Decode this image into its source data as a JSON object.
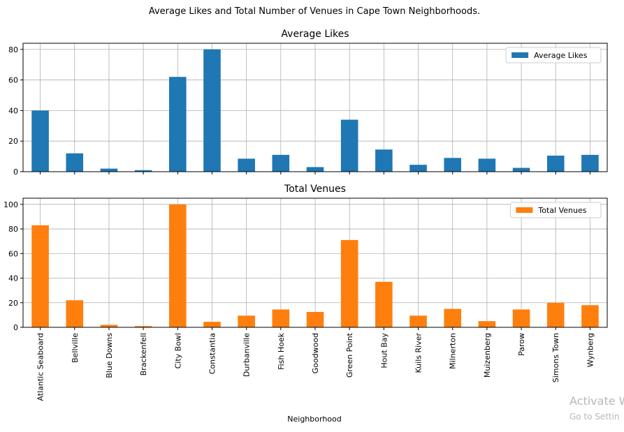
{
  "chart_data": {
    "type": "bar",
    "suptitle": "Average Likes and Total Number of Venues in Cape Town Neighborhoods.",
    "xlabel": "Neighborhood",
    "categories": [
      "Atlantic Seaboard",
      "Bellville",
      "Blue Downs",
      "Brackenfell",
      "City Bowl",
      "Constantia",
      "Durbanville",
      "Fish Hoek",
      "Goodwood",
      "Green Point",
      "Hout Bay",
      "Kuils River",
      "Milnerton",
      "Muizenberg",
      "Parow",
      "Simons Town",
      "Wynberg"
    ],
    "grid": true,
    "legend_position": "top-right",
    "subplots": [
      {
        "title": "Average Likes",
        "series": [
          {
            "name": "Average Likes",
            "color": "#1f77b4",
            "values": [
              40,
              12,
              2,
              1,
              62,
              80,
              8.5,
              11,
              3,
              34,
              14.5,
              4.5,
              9,
              8.5,
              2.5,
              10.5,
              11
            ]
          }
        ],
        "ylim": [
          0,
          84
        ],
        "yticks": [
          0,
          20,
          40,
          60,
          80
        ]
      },
      {
        "title": "Total Venues",
        "series": [
          {
            "name": "Total Venues",
            "color": "#ff7f0e",
            "values": [
              83,
              22,
              2,
              1,
              100,
              4.5,
              9.5,
              14.5,
              12.5,
              71,
              37,
              9.5,
              15,
              5,
              14.5,
              20,
              18
            ]
          }
        ],
        "ylim": [
          0,
          105
        ],
        "yticks": [
          0,
          20,
          40,
          60,
          80,
          100
        ]
      }
    ]
  },
  "watermark": {
    "line1": "Activate W",
    "line2": "Go to Settin"
  }
}
